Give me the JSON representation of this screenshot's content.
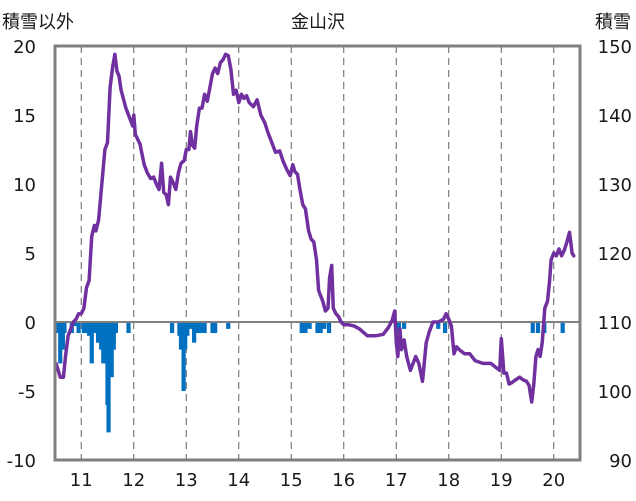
{
  "chart_data": {
    "type": "line",
    "title": "金山沢",
    "left_axis_label": "積雪以外",
    "right_axis_label": "積雪",
    "x_ticks": [
      "11",
      "12",
      "13",
      "14",
      "15",
      "16",
      "17",
      "18",
      "19",
      "20"
    ],
    "x_range": [
      10.5,
      20.5
    ],
    "ylim_left": [
      -10,
      20
    ],
    "yticks_left": [
      20,
      15,
      10,
      5,
      0,
      -5,
      -10
    ],
    "ylim_right": [
      90,
      150
    ],
    "yticks_right": [
      150,
      140,
      130,
      120,
      110,
      100,
      90
    ],
    "grid": "vertical dashed at tick positions",
    "colors": {
      "line": "#7030a0",
      "bars": "#0070c0",
      "frame": "#808080",
      "zero_line": "#808080"
    },
    "series": [
      {
        "type": "line",
        "axis": "left",
        "points": [
          [
            10.52,
            -3.0
          ],
          [
            10.56,
            -3.5
          ],
          [
            10.6,
            -4.0
          ],
          [
            10.66,
            -4.0
          ],
          [
            10.7,
            -2.5
          ],
          [
            10.75,
            -1.0
          ],
          [
            10.8,
            -0.5
          ],
          [
            10.85,
            0.0
          ],
          [
            10.9,
            0.2
          ],
          [
            10.95,
            0.6
          ],
          [
            11.0,
            0.6
          ],
          [
            11.05,
            1.0
          ],
          [
            11.1,
            2.5
          ],
          [
            11.15,
            3.0
          ],
          [
            11.2,
            6.2
          ],
          [
            11.25,
            7.0
          ],
          [
            11.28,
            6.6
          ],
          [
            11.33,
            7.4
          ],
          [
            11.38,
            9.5
          ],
          [
            11.45,
            12.5
          ],
          [
            11.5,
            13.0
          ],
          [
            11.55,
            17.0
          ],
          [
            11.6,
            18.5
          ],
          [
            11.64,
            19.4
          ],
          [
            11.68,
            18.2
          ],
          [
            11.72,
            17.8
          ],
          [
            11.76,
            16.8
          ],
          [
            11.85,
            15.5
          ],
          [
            11.92,
            14.8
          ],
          [
            11.98,
            14.2
          ],
          [
            12.0,
            15.0
          ],
          [
            12.03,
            13.6
          ],
          [
            12.08,
            13.2
          ],
          [
            12.12,
            12.9
          ],
          [
            12.16,
            12.1
          ],
          [
            12.2,
            11.4
          ],
          [
            12.26,
            10.8
          ],
          [
            12.32,
            10.4
          ],
          [
            12.38,
            10.5
          ],
          [
            12.43,
            10.0
          ],
          [
            12.48,
            9.6
          ],
          [
            12.53,
            11.5
          ],
          [
            12.57,
            9.4
          ],
          [
            12.62,
            9.2
          ],
          [
            12.66,
            8.5
          ],
          [
            12.7,
            10.5
          ],
          [
            12.75,
            10.1
          ],
          [
            12.8,
            9.6
          ],
          [
            12.85,
            10.8
          ],
          [
            12.9,
            11.5
          ],
          [
            12.96,
            11.7
          ],
          [
            13.0,
            12.5
          ],
          [
            13.05,
            12.5
          ],
          [
            13.08,
            13.8
          ],
          [
            13.12,
            12.8
          ],
          [
            13.16,
            12.6
          ],
          [
            13.2,
            14.2
          ],
          [
            13.25,
            15.5
          ],
          [
            13.3,
            15.5
          ],
          [
            13.35,
            16.5
          ],
          [
            13.4,
            16.0
          ],
          [
            13.45,
            17.0
          ],
          [
            13.5,
            18.0
          ],
          [
            13.55,
            18.4
          ],
          [
            13.6,
            18.0
          ],
          [
            13.65,
            18.8
          ],
          [
            13.7,
            19.0
          ],
          [
            13.75,
            19.4
          ],
          [
            13.8,
            19.3
          ],
          [
            13.85,
            18.3
          ],
          [
            13.9,
            16.5
          ],
          [
            13.95,
            16.8
          ],
          [
            14.0,
            15.9
          ],
          [
            14.05,
            16.5
          ],
          [
            14.1,
            16.2
          ],
          [
            14.15,
            16.4
          ],
          [
            14.2,
            15.9
          ],
          [
            14.28,
            15.6
          ],
          [
            14.35,
            16.1
          ],
          [
            14.42,
            15.0
          ],
          [
            14.5,
            14.4
          ],
          [
            14.55,
            13.8
          ],
          [
            14.62,
            13.1
          ],
          [
            14.7,
            12.3
          ],
          [
            14.78,
            12.4
          ],
          [
            14.85,
            11.6
          ],
          [
            14.92,
            11.0
          ],
          [
            14.98,
            10.6
          ],
          [
            15.03,
            11.4
          ],
          [
            15.07,
            10.9
          ],
          [
            15.12,
            10.7
          ],
          [
            15.17,
            9.5
          ],
          [
            15.22,
            8.5
          ],
          [
            15.27,
            8.2
          ],
          [
            15.33,
            6.6
          ],
          [
            15.38,
            6.0
          ],
          [
            15.43,
            5.8
          ],
          [
            15.48,
            4.5
          ],
          [
            15.52,
            2.3
          ],
          [
            15.55,
            2.0
          ],
          [
            15.6,
            1.5
          ],
          [
            15.65,
            0.8
          ],
          [
            15.7,
            1.0
          ],
          [
            15.73,
            3.2
          ],
          [
            15.77,
            4.1
          ],
          [
            15.8,
            1.0
          ],
          [
            15.85,
            0.6
          ],
          [
            15.9,
            0.4
          ],
          [
            15.95,
            0.0
          ],
          [
            16.0,
            -0.2
          ],
          [
            16.1,
            -0.2
          ],
          [
            16.2,
            -0.3
          ],
          [
            16.3,
            -0.5
          ],
          [
            16.45,
            -1.0
          ],
          [
            16.6,
            -1.0
          ],
          [
            16.75,
            -0.9
          ],
          [
            16.85,
            -0.4
          ],
          [
            16.92,
            0.1
          ],
          [
            16.97,
            0.8
          ],
          [
            17.0,
            -1.5
          ],
          [
            17.03,
            -2.5
          ],
          [
            17.07,
            -0.5
          ],
          [
            17.1,
            -2.0
          ],
          [
            17.15,
            -1.3
          ],
          [
            17.2,
            -2.5
          ],
          [
            17.27,
            -3.5
          ],
          [
            17.32,
            -3.0
          ],
          [
            17.37,
            -2.5
          ],
          [
            17.43,
            -3.0
          ],
          [
            17.5,
            -4.3
          ],
          [
            17.57,
            -1.5
          ],
          [
            17.63,
            -0.7
          ],
          [
            17.7,
            0.0
          ],
          [
            17.8,
            0.0
          ],
          [
            17.9,
            0.2
          ],
          [
            17.95,
            0.6
          ],
          [
            18.0,
            0.2
          ],
          [
            18.05,
            -0.3
          ],
          [
            18.1,
            -2.3
          ],
          [
            18.15,
            -1.8
          ],
          [
            18.2,
            -2.0
          ],
          [
            18.3,
            -2.3
          ],
          [
            18.4,
            -2.3
          ],
          [
            18.5,
            -2.8
          ],
          [
            18.65,
            -3.0
          ],
          [
            18.8,
            -3.0
          ],
          [
            18.9,
            -3.3
          ],
          [
            18.97,
            -3.5
          ],
          [
            19.0,
            -1.2
          ],
          [
            19.05,
            -3.7
          ],
          [
            19.1,
            -3.7
          ],
          [
            19.15,
            -4.5
          ],
          [
            19.2,
            -4.4
          ],
          [
            19.27,
            -4.2
          ],
          [
            19.35,
            -4.0
          ],
          [
            19.42,
            -4.2
          ],
          [
            19.48,
            -4.3
          ],
          [
            19.53,
            -4.6
          ],
          [
            19.58,
            -5.8
          ],
          [
            19.62,
            -4.5
          ],
          [
            19.66,
            -2.5
          ],
          [
            19.7,
            -2.0
          ],
          [
            19.74,
            -2.5
          ],
          [
            19.78,
            -1.5
          ],
          [
            19.83,
            1.0
          ],
          [
            19.88,
            1.5
          ],
          [
            19.92,
            3.0
          ],
          [
            19.95,
            4.5
          ],
          [
            20.0,
            5.0
          ],
          [
            20.05,
            4.8
          ],
          [
            20.1,
            5.3
          ],
          [
            20.15,
            4.8
          ],
          [
            20.2,
            5.2
          ],
          [
            20.25,
            5.8
          ],
          [
            20.3,
            6.5
          ],
          [
            20.35,
            5.0
          ],
          [
            20.38,
            4.8
          ]
        ]
      },
      {
        "type": "bar",
        "axis": "left",
        "name": "",
        "points": [
          [
            10.55,
            -0.8
          ],
          [
            10.6,
            -3.0
          ],
          [
            10.65,
            -2.0
          ],
          [
            10.68,
            -0.8
          ],
          [
            10.82,
            -0.8
          ],
          [
            10.9,
            -0.3
          ],
          [
            10.95,
            -0.8
          ],
          [
            11.05,
            -0.8
          ],
          [
            11.1,
            -0.8
          ],
          [
            11.15,
            -1.0
          ],
          [
            11.2,
            -3.0
          ],
          [
            11.25,
            -0.8
          ],
          [
            11.32,
            -1.5
          ],
          [
            11.38,
            -2.0
          ],
          [
            11.42,
            -3.0
          ],
          [
            11.46,
            -3.0
          ],
          [
            11.5,
            -6.0
          ],
          [
            11.52,
            -8.0
          ],
          [
            11.55,
            -3.0
          ],
          [
            11.58,
            -4.0
          ],
          [
            11.62,
            -2.0
          ],
          [
            11.66,
            -0.8
          ],
          [
            11.9,
            -0.8
          ],
          [
            12.73,
            -0.8
          ],
          [
            12.87,
            -1.0
          ],
          [
            12.9,
            -2.0
          ],
          [
            12.93,
            -2.0
          ],
          [
            12.95,
            -5.0
          ],
          [
            12.98,
            -2.0
          ],
          [
            13.02,
            -1.0
          ],
          [
            13.08,
            -0.5
          ],
          [
            13.15,
            -1.5
          ],
          [
            13.22,
            -0.8
          ],
          [
            13.28,
            -0.8
          ],
          [
            13.35,
            -0.8
          ],
          [
            13.5,
            -0.8
          ],
          [
            13.55,
            -0.8
          ],
          [
            13.8,
            -0.5
          ],
          [
            15.2,
            -0.8
          ],
          [
            15.27,
            -0.8
          ],
          [
            15.35,
            -0.5
          ],
          [
            15.5,
            -0.8
          ],
          [
            15.56,
            -0.8
          ],
          [
            15.63,
            -0.5
          ],
          [
            15.72,
            -0.8
          ],
          [
            17.05,
            -0.8
          ],
          [
            17.15,
            -0.5
          ],
          [
            17.8,
            -0.5
          ],
          [
            17.93,
            -0.8
          ],
          [
            19.6,
            -0.8
          ],
          [
            19.7,
            -0.8
          ],
          [
            19.82,
            -0.8
          ],
          [
            20.17,
            -0.8
          ]
        ]
      }
    ]
  }
}
